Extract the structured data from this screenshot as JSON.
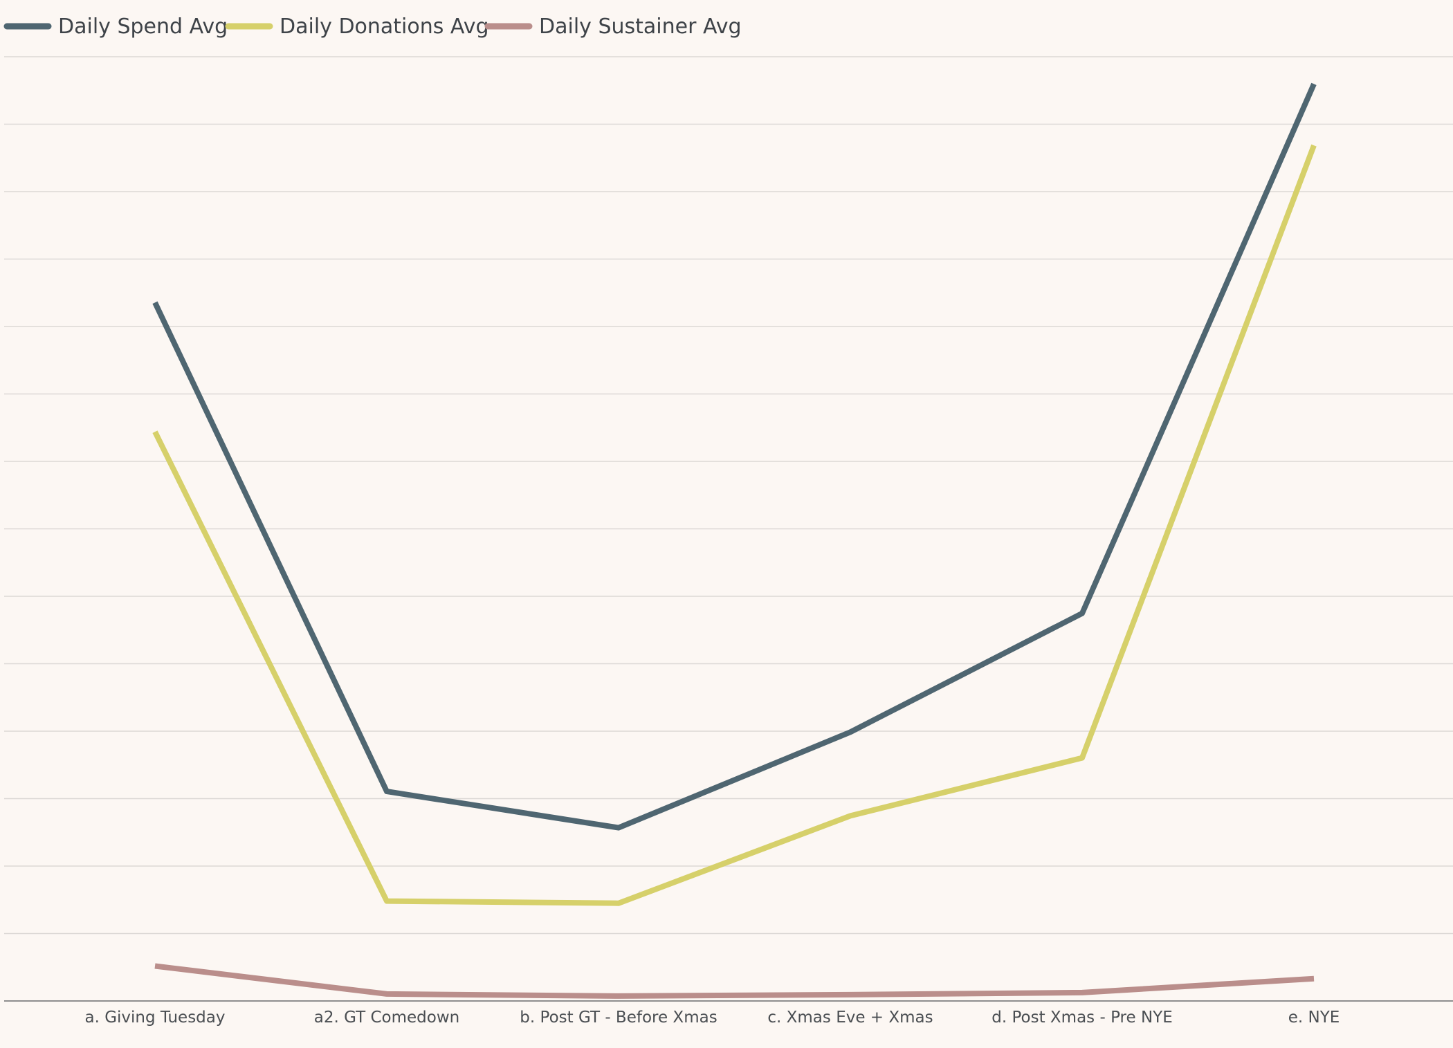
{
  "chart_data": {
    "type": "line",
    "title": "",
    "xlabel": "",
    "ylabel": "",
    "categories": [
      "a. Giving Tuesday",
      "a2. GT Comedown",
      "b. Post GT - Before Xmas",
      "c. Xmas Eve + Xmas",
      "d. Post Xmas - Pre NYE",
      "e. NYE"
    ],
    "series": [
      {
        "name": "Daily Spend Avg",
        "color": "#4F6671",
        "values": [
          1000,
          300,
          248,
          385,
          555,
          1313
        ]
      },
      {
        "name": "Daily Donations Avg",
        "color": "#D6D06A",
        "values": [
          815,
          143,
          140,
          265,
          348,
          1225
        ]
      },
      {
        "name": "Daily Sustainer Avg",
        "color": "#BA8E8B",
        "values": [
          50,
          10,
          7,
          9,
          12,
          32
        ]
      }
    ],
    "ylim": [
      0,
      1350
    ],
    "grid": true,
    "y_tick_labels_shown": false,
    "legend_position": "top-left"
  }
}
